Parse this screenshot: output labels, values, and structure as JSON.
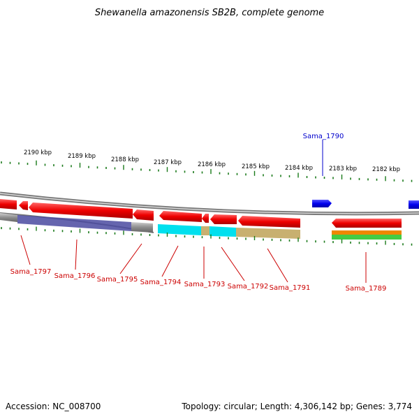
{
  "title": "Shewanella amazonensis SB2B, complete genome",
  "ticks": [
    "2190 kbp",
    "2189 kbp",
    "2188 kbp",
    "2187 kbp",
    "2186 kbp",
    "2185 kbp",
    "2184 kbp",
    "2183 kbp",
    "2182 kbp"
  ],
  "genes_red": [
    "Sama_1797",
    "Sama_1796",
    "Sama_1795",
    "Sama_1794",
    "Sama_1793",
    "Sama_1792",
    "Sama_1791",
    "Sama_1789"
  ],
  "genes_blue": [
    "Sama_1790"
  ],
  "footer": {
    "accession": "Accession: NC_008700",
    "topology": "Topology: circular; Length: 4,306,142 bp; Genes: 3,774"
  },
  "colors": {
    "gene_red": "#ee0000",
    "gene_blue": "#0000ee",
    "tick_green": "#1a7a1a",
    "backbone": "#888888"
  }
}
